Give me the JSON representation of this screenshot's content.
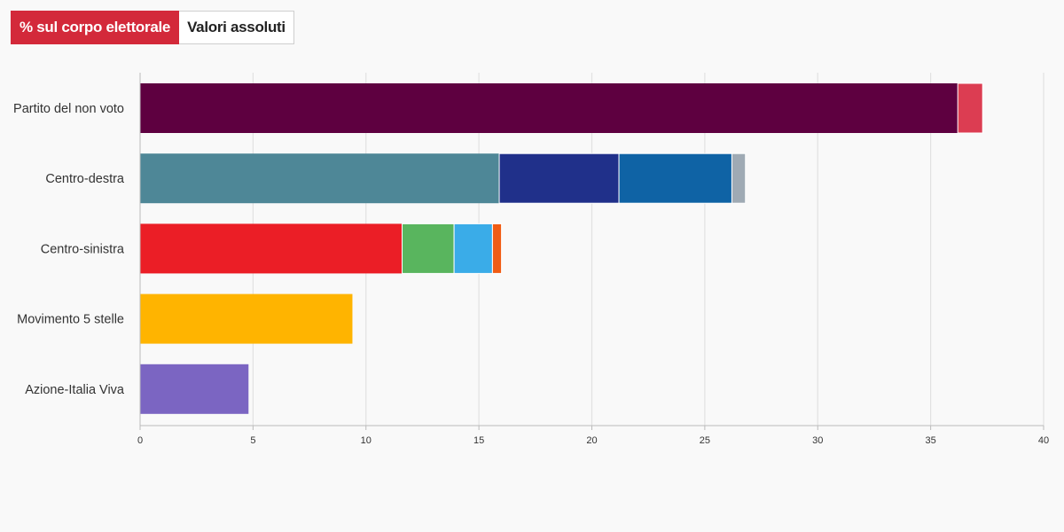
{
  "toggle": {
    "options": [
      "% sul corpo elettorale",
      "Valori assoluti"
    ],
    "active_index": 0,
    "active_color": "#d3293a"
  },
  "chart_data": {
    "type": "bar",
    "orientation": "horizontal",
    "stacked": true,
    "title": "",
    "xlabel": "",
    "ylabel": "",
    "xlim": [
      0,
      40
    ],
    "x_ticks": [
      0,
      5,
      10,
      15,
      20,
      25,
      30,
      35,
      40
    ],
    "grid": true,
    "categories": [
      "Partito del non voto",
      "Centro-destra",
      "Centro-sinistra",
      "Movimento 5 stelle",
      "Azione-Italia Viva"
    ],
    "bars": [
      {
        "category": "Partito del non voto",
        "segments": [
          {
            "value": 36.2,
            "color": "#5e0040"
          },
          {
            "value": 1.1,
            "color": "#dc3d52"
          }
        ]
      },
      {
        "category": "Centro-destra",
        "segments": [
          {
            "value": 15.9,
            "color": "#4e8797"
          },
          {
            "value": 5.3,
            "color": "#20308a"
          },
          {
            "value": 5.0,
            "color": "#0f63a5"
          },
          {
            "value": 0.6,
            "color": "#9faab4"
          }
        ]
      },
      {
        "category": "Centro-sinistra",
        "segments": [
          {
            "value": 11.6,
            "color": "#eb1e26"
          },
          {
            "value": 2.3,
            "color": "#59b55e"
          },
          {
            "value": 1.7,
            "color": "#3aace8"
          },
          {
            "value": 0.4,
            "color": "#f05c14"
          }
        ]
      },
      {
        "category": "Movimento 5 stelle",
        "segments": [
          {
            "value": 9.4,
            "color": "#ffb400"
          }
        ]
      },
      {
        "category": "Azione-Italia Viva",
        "segments": [
          {
            "value": 4.8,
            "color": "#7b65c2"
          }
        ]
      }
    ]
  }
}
